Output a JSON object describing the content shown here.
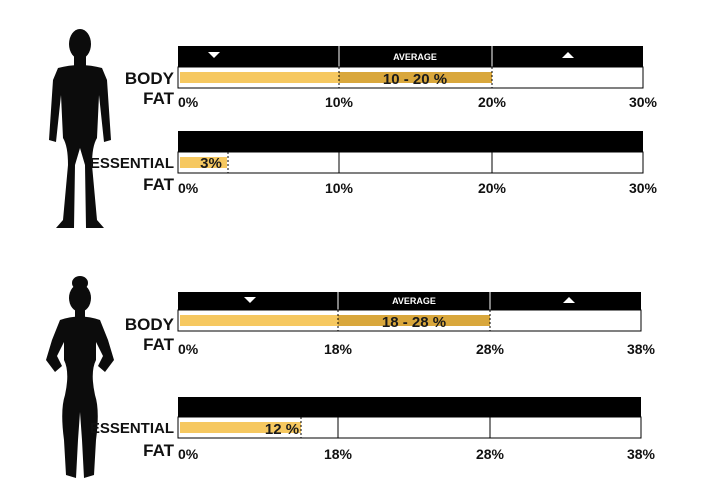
{
  "chart_data": [
    {
      "type": "bar",
      "group": "male",
      "label_lines": [
        "BODY",
        "FAT"
      ],
      "header_segments": [
        {
          "kind": "down-arrow",
          "from": 0,
          "to": 10
        },
        {
          "kind": "text",
          "text": "AVERAGE",
          "from": 10,
          "to": 20
        },
        {
          "kind": "up-arrow",
          "from": 20,
          "to": 30
        }
      ],
      "range": [
        10,
        20
      ],
      "value_label": "10 - 20 %",
      "ticks": [
        "0%",
        "10%",
        "20%",
        "30%"
      ],
      "tick_values": [
        0,
        10,
        20,
        30
      ],
      "xlim": [
        0,
        30
      ]
    },
    {
      "type": "bar",
      "group": "male",
      "label_lines": [
        "ESSENTIAL",
        "FAT"
      ],
      "range": [
        0,
        3
      ],
      "value_label": "3%",
      "ticks": [
        "0%",
        "10%",
        "20%",
        "30%"
      ],
      "tick_values": [
        0,
        10,
        20,
        30
      ],
      "xlim": [
        0,
        30
      ]
    },
    {
      "type": "bar",
      "group": "female",
      "label_lines": [
        "BODY",
        "FAT"
      ],
      "header_segments": [
        {
          "kind": "down-arrow",
          "from": 0,
          "to": 18
        },
        {
          "kind": "text",
          "text": "AVERAGE",
          "from": 18,
          "to": 28
        },
        {
          "kind": "up-arrow",
          "from": 28,
          "to": 38
        }
      ],
      "range": [
        18,
        28
      ],
      "value_label": "18 - 28 %",
      "ticks": [
        "0%",
        "18%",
        "28%",
        "38%"
      ],
      "tick_values": [
        0,
        18,
        28,
        38
      ],
      "xlim": [
        0,
        38
      ]
    },
    {
      "type": "bar",
      "group": "female",
      "label_lines": [
        "ESSENTIAL",
        "FAT"
      ],
      "range": [
        0,
        12
      ],
      "value_label": "12 %",
      "ticks": [
        "0%",
        "18%",
        "28%",
        "38%"
      ],
      "tick_values": [
        0,
        18,
        28,
        38
      ],
      "xlim": [
        0,
        38
      ]
    }
  ],
  "colors": {
    "bar_light": "#F6C860",
    "bar_dark": "#D9A73C",
    "header": "#000000",
    "silhouette": "#0c0c0c"
  },
  "icons": [
    "male-silhouette",
    "female-silhouette",
    "down-arrow-icon",
    "up-arrow-icon"
  ]
}
